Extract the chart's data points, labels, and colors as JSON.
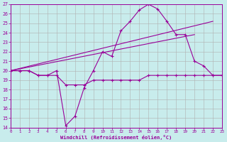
{
  "xlabel": "Windchill (Refroidissement éolien,°C)",
  "xlim": [
    0,
    23
  ],
  "ylim": [
    14,
    27
  ],
  "xticks": [
    0,
    1,
    2,
    3,
    4,
    5,
    6,
    7,
    8,
    9,
    10,
    11,
    12,
    13,
    14,
    15,
    16,
    17,
    18,
    19,
    20,
    21,
    22,
    23
  ],
  "yticks": [
    14,
    15,
    16,
    17,
    18,
    19,
    20,
    21,
    22,
    23,
    24,
    25,
    26,
    27
  ],
  "bg_color": "#c8ecec",
  "grid_color": "#b0b0b0",
  "line_color": "#990099",
  "line1_x": [
    0,
    1,
    2,
    3,
    4,
    5,
    6,
    7,
    8,
    9,
    10,
    11,
    12,
    13,
    14,
    15,
    16,
    17,
    18,
    19,
    20,
    21,
    22,
    23
  ],
  "line1_y": [
    20,
    20,
    20,
    19.5,
    19.5,
    20,
    14.2,
    15.2,
    18.2,
    20,
    22,
    21.5,
    24.2,
    25.2,
    26.4,
    27,
    26.5,
    25.2,
    23.8,
    23.8,
    21,
    20.5,
    19.5,
    19.5
  ],
  "line2_x": [
    0,
    22
  ],
  "line2_y": [
    20,
    25.2
  ],
  "line3_x": [
    0,
    20
  ],
  "line3_y": [
    20,
    23.8
  ],
  "line4_x": [
    0,
    1,
    2,
    3,
    4,
    5,
    6,
    7,
    8,
    9,
    10,
    11,
    12,
    13,
    14,
    15,
    16,
    17,
    18,
    19,
    20,
    21,
    22,
    23
  ],
  "line4_y": [
    20,
    20,
    20,
    19.5,
    19.5,
    19.5,
    18.5,
    18.5,
    18.5,
    19,
    19,
    19,
    19,
    19,
    19,
    19.5,
    19.5,
    19.5,
    19.5,
    19.5,
    19.5,
    19.5,
    19.5,
    19.5
  ]
}
